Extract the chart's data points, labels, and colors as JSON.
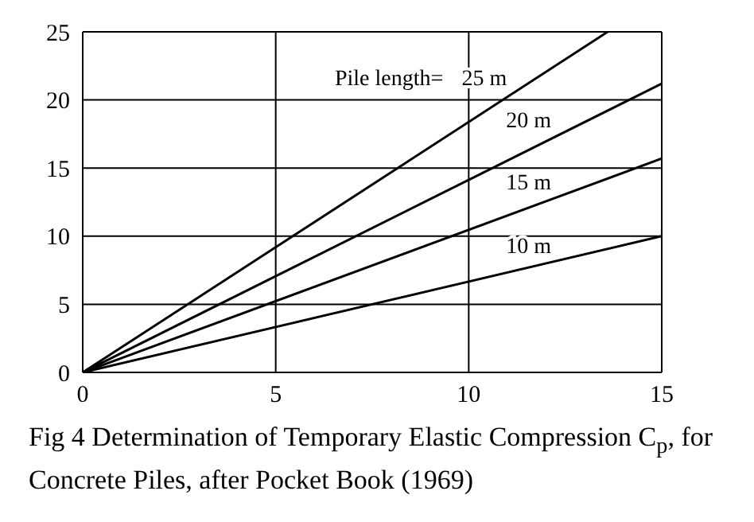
{
  "chart_data": {
    "type": "line",
    "title": "Fig 4 Determination of Temporary Elastic Compression C$_{p}$, for Concrete Piles, after Pocket Book (1969)",
    "legend_title": "Pile length=",
    "series": [
      {
        "name": "25 m",
        "color": "#000000",
        "x": [
          0,
          13.6
        ],
        "values": [
          0,
          25
        ]
      },
      {
        "name": "20 m",
        "color": "#000000",
        "x": [
          0,
          15
        ],
        "values": [
          0,
          21.2
        ]
      },
      {
        "name": "15 m",
        "color": "#000000",
        "x": [
          0,
          15
        ],
        "values": [
          0,
          15.7
        ]
      },
      {
        "name": "10 m",
        "color": "#000000",
        "x": [
          0,
          15
        ],
        "values": [
          0,
          10
        ]
      }
    ],
    "xlim": [
      0,
      15
    ],
    "xticks": [
      0,
      5,
      10,
      15
    ],
    "ylim": [
      0,
      25
    ],
    "yticks": [
      0,
      5,
      10,
      15,
      20,
      25
    ],
    "grid": true,
    "marker": "none",
    "line_style": "solid"
  }
}
